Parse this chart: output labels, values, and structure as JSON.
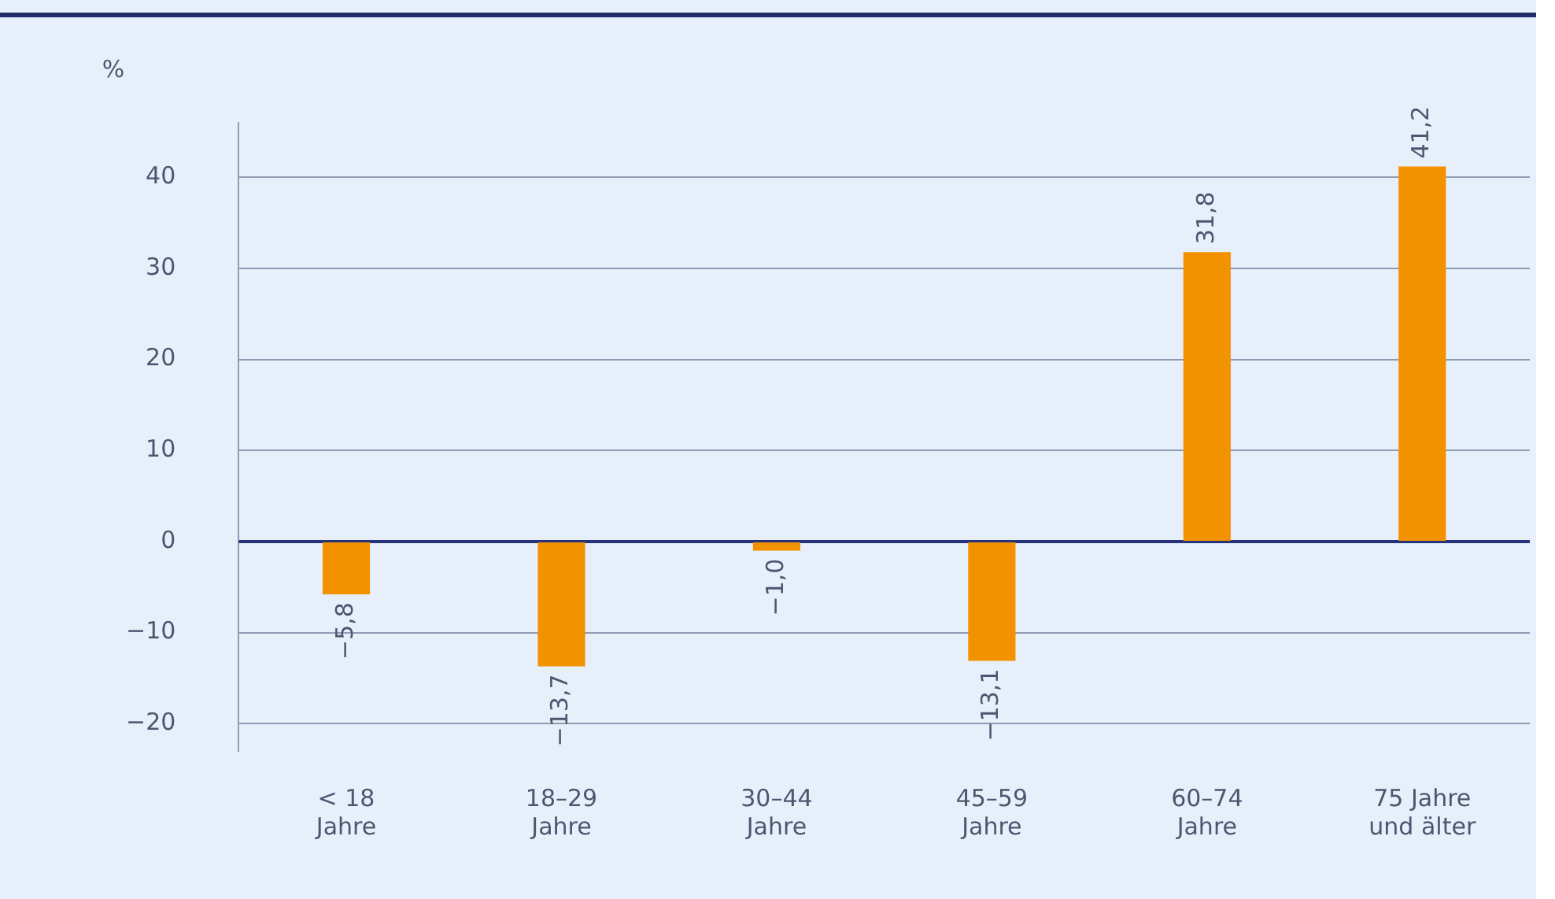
{
  "chart_data": {
    "type": "bar",
    "ylabel": "%",
    "categories": [
      "< 18\nJahre",
      "18–29\nJahre",
      "30–44\nJahre",
      "45–59\nJahre",
      "60–74\nJahre",
      "75 Jahre\nund älter"
    ],
    "values": [
      -5.8,
      -13.7,
      -1.0,
      -13.1,
      31.8,
      41.2
    ],
    "value_labels": [
      "−5,8",
      "−13,7",
      "−1,0",
      "−13,1",
      "31,8",
      "41,2"
    ],
    "color": "#f39200",
    "ylim": [
      -23,
      46
    ],
    "yticks": [
      {
        "value": -20,
        "label": "−20"
      },
      {
        "value": -10,
        "label": "−10"
      },
      0,
      10,
      20,
      30,
      40
    ],
    "ref_lines": [
      {
        "axis": "y",
        "value": 0,
        "color": "#26337a"
      }
    ],
    "grid": "y",
    "legend": false
  }
}
